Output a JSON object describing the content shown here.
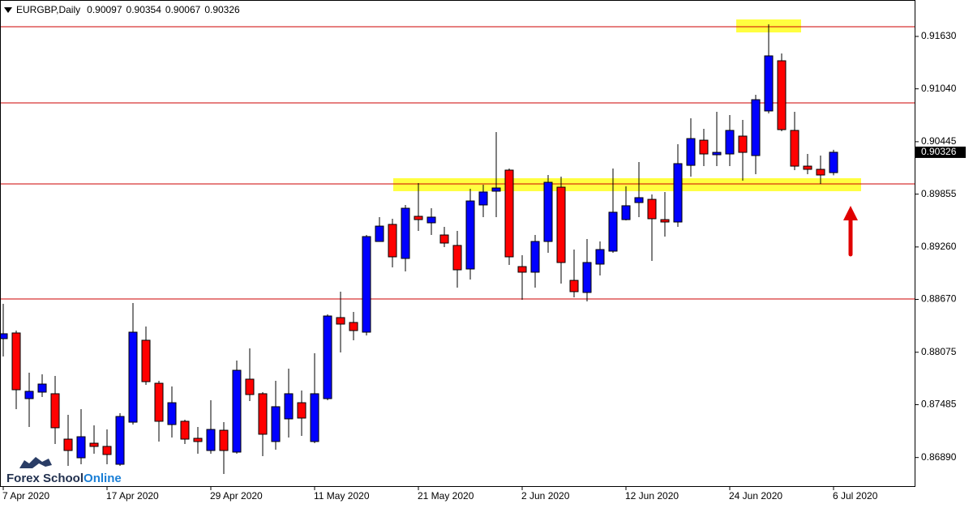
{
  "chart_data": {
    "type": "candlestick",
    "symbol": "EURGBP,Daily",
    "categories": [
      "7 Apr 2020",
      null,
      null,
      null,
      null,
      null,
      null,
      null,
      "17 Apr 2020",
      null,
      null,
      null,
      null,
      null,
      null,
      null,
      "29 Apr 2020",
      null,
      null,
      null,
      null,
      null,
      null,
      null,
      "11 May 2020",
      null,
      null,
      null,
      null,
      null,
      null,
      null,
      "21 May 2020",
      null,
      null,
      null,
      null,
      null,
      null,
      null,
      "2 Jun 2020",
      null,
      null,
      null,
      null,
      null,
      null,
      null,
      "12 Jun 2020",
      null,
      null,
      null,
      null,
      null,
      null,
      null,
      "24 Jun 2020",
      null,
      null,
      null,
      null,
      null,
      null,
      null,
      "6 Jul 2020"
    ],
    "open": [
      0.88228,
      0.88292,
      0.87553,
      0.87626,
      0.87608,
      0.87097,
      0.86887,
      0.87051,
      0.87015,
      0.86814,
      0.87288,
      0.8821,
      0.87726,
      0.87261,
      0.87298,
      0.87106,
      0.86969,
      0.87197,
      0.86951,
      0.87772,
      0.87608,
      0.8707,
      0.87325,
      0.87507,
      0.8707,
      0.87553,
      0.88465,
      0.8841,
      0.88301,
      0.89322,
      0.89514,
      0.89131,
      0.89605,
      0.89532,
      0.89395,
      0.89277,
      0.89012,
      0.89733,
      0.89888,
      0.90125,
      0.89039,
      0.88976,
      0.89322,
      0.89933,
      0.88884,
      0.88748,
      0.89067,
      0.89213,
      0.89568,
      0.8976,
      0.89796,
      0.89568,
      0.89541,
      0.90179,
      0.90462,
      0.90298,
      0.90307,
      0.90508,
      0.90289,
      0.90791,
      0.91356,
      0.90572,
      0.9017,
      0.90134,
      0.90097
    ],
    "high": [
      0.8862,
      0.88319,
      0.87845,
      0.87827,
      0.87808,
      0.87371,
      0.87434,
      0.87252,
      0.87206,
      0.87389,
      0.88629,
      0.88365,
      0.87754,
      0.8769,
      0.87316,
      0.87234,
      0.87535,
      0.87288,
      0.87982,
      0.88118,
      0.87626,
      0.87754,
      0.8789,
      0.87644,
      0.88064,
      0.88501,
      0.88757,
      0.88529,
      0.89395,
      0.89596,
      0.89578,
      0.89733,
      0.89979,
      0.89696,
      0.89486,
      0.89441,
      0.89915,
      0.89961,
      0.90553,
      0.90143,
      0.89167,
      0.89395,
      0.9007,
      0.90052,
      0.89231,
      0.8935,
      0.89322,
      0.90143,
      0.89942,
      0.90216,
      0.89851,
      0.89879,
      0.90417,
      0.90708,
      0.9059,
      0.90781,
      0.90745,
      0.9069,
      0.90973,
      0.91766,
      0.91438,
      0.90781,
      0.90307,
      0.90289,
      0.90354
    ],
    "low": [
      0.88027,
      0.87434,
      0.87234,
      0.87571,
      0.87042,
      0.86796,
      0.86814,
      0.86933,
      0.86814,
      0.86796,
      0.87261,
      0.87708,
      0.8707,
      0.87115,
      0.87042,
      0.86933,
      0.86933,
      0.86705,
      0.86933,
      0.87526,
      0.86905,
      0.86978,
      0.87115,
      0.87133,
      0.87051,
      0.87535,
      0.88073,
      0.8821,
      0.88264,
      0.89322,
      0.8903,
      0.88985,
      0.89441,
      0.89395,
      0.89258,
      0.88802,
      0.88894,
      0.89596,
      0.89596,
      0.89058,
      0.88666,
      0.88802,
      0.89195,
      0.88848,
      0.88693,
      0.88647,
      0.88939,
      0.89195,
      0.89559,
      0.89596,
      0.89103,
      0.89377,
      0.89486,
      0.90052,
      0.9017,
      0.9017,
      0.9017,
      0.90006,
      0.90079,
      0.90763,
      0.90563,
      0.90125,
      0.90079,
      0.8997,
      0.90067
    ],
    "close": [
      0.88283,
      0.87653,
      0.87635,
      0.87717,
      0.87225,
      0.86969,
      0.87124,
      0.87015,
      0.86924,
      0.87352,
      0.88301,
      0.87744,
      0.87298,
      0.87507,
      0.87097,
      0.8707,
      0.87206,
      0.86969,
      0.87872,
      0.87599,
      0.87152,
      0.87462,
      0.87608,
      0.87334,
      0.87608,
      0.88483,
      0.88392,
      0.88319,
      0.89377,
      0.89495,
      0.89149,
      0.89696,
      0.89568,
      0.89596,
      0.89304,
      0.89003,
      0.89778,
      0.89879,
      0.89924,
      0.89149,
      0.88976,
      0.89322,
      0.89988,
      0.89085,
      0.88757,
      0.89085,
      0.89231,
      0.89651,
      0.89724,
      0.89815,
      0.89578,
      0.89541,
      0.90198,
      0.9048,
      0.90307,
      0.90325,
      0.90572,
      0.90325,
      0.90918,
      0.91411,
      0.90581,
      0.9017,
      0.90134,
      0.9007,
      0.90326
    ],
    "up_color": "#0000ff",
    "down_color": "#ff0000",
    "ylim": [
      0.86568,
      0.9204
    ],
    "yticks": [
      {
        "value": 0.9163,
        "label": "0.91630"
      },
      {
        "value": 0.9104,
        "label": "0.91040"
      },
      0.90445,
      0.89855,
      {
        "value": 0.8926,
        "label": "0.89260"
      },
      {
        "value": 0.8867,
        "label": "0.88670"
      },
      0.88075,
      0.87485,
      {
        "value": 0.8689,
        "label": "0.86890"
      }
    ],
    "levels": [
      0.91739,
      0.90882,
      0.8997,
      0.88675
    ],
    "level_color": "#cc0000",
    "zones": [
      {
        "low": 0.91675,
        "high": 0.91821
      },
      {
        "low": 0.89888,
        "high": 0.90034
      }
    ],
    "zone_color": "#ffff40"
  },
  "logo": {
    "name": "Forex School",
    "suffix": "Online"
  }
}
